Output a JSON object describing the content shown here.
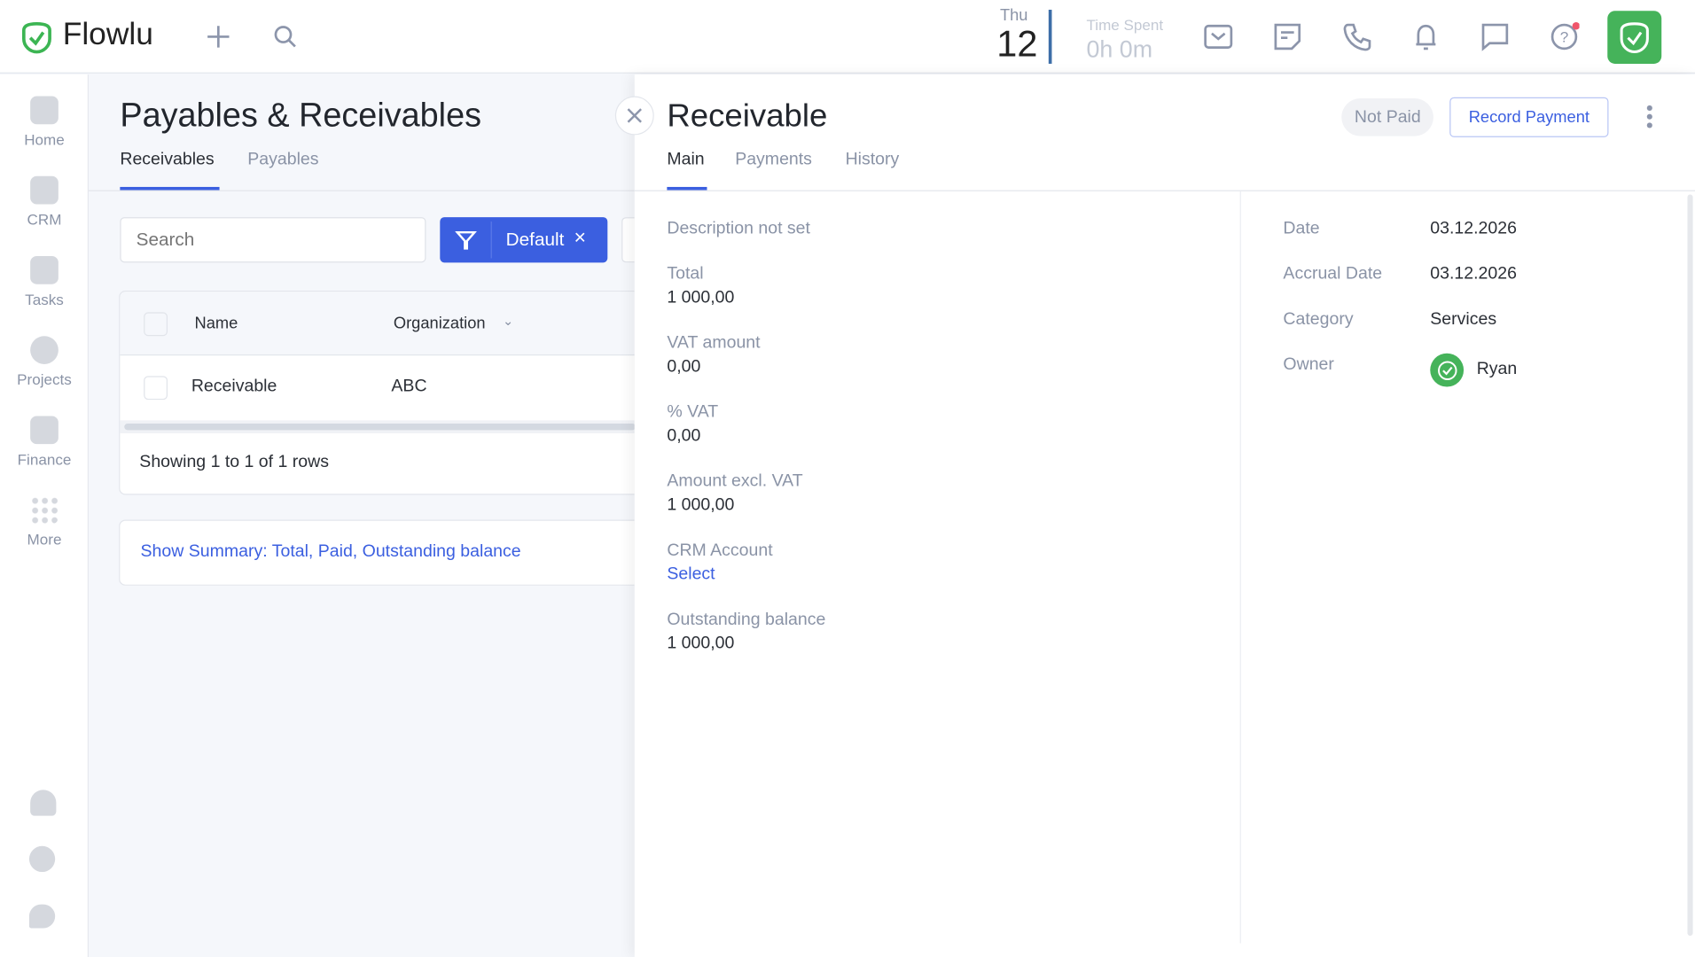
{
  "app": {
    "name": "Flowlu",
    "brand_color": "#3cb553",
    "accent": "#3b5fe0"
  },
  "topbar": {
    "day_name": "Thu",
    "day_number": "12",
    "time_spent_label": "Time Spent",
    "time_spent_value": "0h 0m",
    "icons": [
      "plus-icon",
      "search-icon",
      "mail-icon",
      "notes-icon",
      "phone-icon",
      "bell-icon",
      "chat-icon",
      "help-icon",
      "flowlu-check-icon"
    ]
  },
  "sidebar": {
    "items": [
      {
        "label": "Home"
      },
      {
        "label": "CRM"
      },
      {
        "label": "Tasks"
      },
      {
        "label": "Projects"
      },
      {
        "label": "Finance"
      },
      {
        "label": "More"
      }
    ]
  },
  "page": {
    "title": "Payables & Receivables",
    "tabs": [
      {
        "label": "Receivables",
        "active": true
      },
      {
        "label": "Payables",
        "active": false
      }
    ],
    "search_placeholder": "Search",
    "filter_label": "Default",
    "table": {
      "headers": [
        "Name",
        "Organization"
      ],
      "rows": [
        {
          "name": "Receivable",
          "organization": "ABC"
        }
      ],
      "footer": "Showing 1 to 1 of 1 rows"
    },
    "summary_link": "Show Summary: Total, Paid, Outstanding balance"
  },
  "detail": {
    "title": "Receivable",
    "status": "Not Paid",
    "record_payment": "Record Payment",
    "tabs": [
      {
        "label": "Main",
        "active": true
      },
      {
        "label": "Payments"
      },
      {
        "label": "History"
      }
    ],
    "description": "Description not set",
    "fields": [
      {
        "label": "Total",
        "value": "1 000,00"
      },
      {
        "label": "VAT amount",
        "value": "0,00"
      },
      {
        "label": "% VAT",
        "value": "0,00"
      },
      {
        "label": "Amount excl. VAT",
        "value": "1 000,00"
      },
      {
        "label": "CRM Account",
        "value": "Select"
      },
      {
        "label": "Outstanding balance",
        "value": "1 000,00"
      }
    ],
    "side": [
      {
        "label": "Date",
        "value": "03.12.2026"
      },
      {
        "label": "Accrual Date",
        "value": "03.12.2026"
      },
      {
        "label": "Category",
        "value": "Services"
      },
      {
        "label": "Owner",
        "value": "Ryan"
      }
    ]
  }
}
